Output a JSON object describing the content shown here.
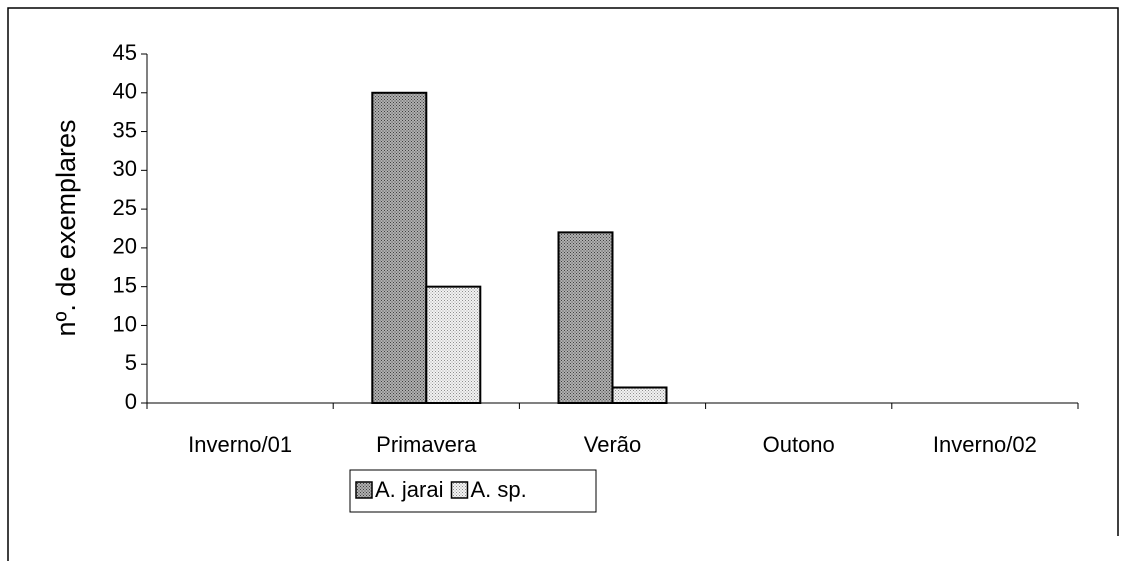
{
  "chart_data": {
    "type": "bar",
    "y_label": "nº. de exemplares",
    "categories": [
      "Inverno/01",
      "Primavera",
      "Verão",
      "Outono",
      "Inverno/02"
    ],
    "series": [
      {
        "name": "A. jarai",
        "color": "#8c8c8c",
        "values": [
          0,
          40,
          22,
          0,
          0
        ]
      },
      {
        "name": "A. sp.",
        "color": "#e0e0e0",
        "values": [
          0,
          15,
          2,
          0,
          0
        ]
      }
    ],
    "ylim": [
      0,
      45
    ],
    "yticks": [
      0,
      5,
      10,
      15,
      20,
      25,
      30,
      35,
      40,
      45
    ],
    "legend": "bottom"
  }
}
